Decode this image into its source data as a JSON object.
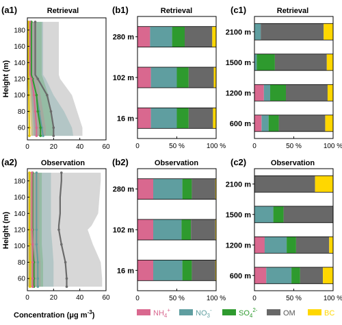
{
  "colors": {
    "NH4": "#d9688f",
    "NO3": "#5f9ea0",
    "SO4": "#2e9a2e",
    "OM": "#686868",
    "BC": "#ffd700"
  },
  "legend": {
    "items": [
      {
        "key": "NH4",
        "base": "NH",
        "sub": "4",
        "sup": "+"
      },
      {
        "key": "NO3",
        "base": "NO",
        "sub": "3",
        "sup": "-"
      },
      {
        "key": "SO4",
        "base": "SO",
        "sub": "4",
        "sup": "2-"
      },
      {
        "key": "OM",
        "label": "OM"
      },
      {
        "key": "BC",
        "label": "BC"
      }
    ]
  },
  "axes": {
    "ylabel": "Height (m)",
    "xlabel": "Concentration (μg m⁻³)",
    "xlabel_main": "Concentration (",
    "xlabel_unit": "μg m",
    "xlabel_exp": "-3",
    "xlabel_close": ")"
  },
  "chart_data": [
    {
      "panel": "(a1)",
      "title": "Retrieval",
      "type": "line",
      "xlim": [
        0,
        60
      ],
      "ylim": [
        45,
        195
      ],
      "xticks": [
        0,
        20,
        40,
        60
      ],
      "yticks": [
        60,
        80,
        100,
        120,
        140,
        160,
        180
      ],
      "series": [
        {
          "key": "OM",
          "height": [
            50,
            60,
            80,
            100,
            120,
            125,
            140,
            160,
            180,
            190
          ],
          "value": [
            20,
            20,
            18,
            15,
            8,
            6,
            6,
            6,
            6,
            6
          ],
          "lower": [
            5,
            5,
            4,
            3,
            2,
            2,
            2,
            2,
            2,
            2
          ],
          "upper": [
            42,
            42,
            38,
            34,
            25,
            24,
            24,
            24,
            24,
            24
          ]
        },
        {
          "key": "NO3",
          "height": [
            50,
            60,
            80,
            100,
            120,
            125,
            140,
            160,
            180,
            190
          ],
          "value": [
            12,
            11,
            9,
            7,
            4,
            3,
            3,
            3,
            3,
            3
          ],
          "lower": [
            3,
            3,
            2,
            2,
            1,
            1,
            1,
            1,
            1,
            1
          ],
          "upper": [
            35,
            34,
            28,
            20,
            14,
            12,
            12,
            12,
            12,
            12
          ]
        },
        {
          "key": "SO4",
          "height": [
            50,
            60,
            80,
            100,
            120,
            125,
            140,
            160,
            180,
            190
          ],
          "value": [
            10,
            10,
            8,
            7,
            4,
            3,
            3,
            3,
            3,
            3
          ],
          "lower": [
            3,
            3,
            3,
            2,
            1,
            1,
            1,
            1,
            1,
            1
          ],
          "upper": [
            20,
            20,
            18,
            16,
            12,
            11,
            11,
            11,
            11,
            11
          ]
        },
        {
          "key": "NH4",
          "height": [
            50,
            60,
            80,
            100,
            120,
            125,
            140,
            160,
            180,
            190
          ],
          "value": [
            7,
            7,
            6,
            5,
            3,
            2,
            2,
            2,
            2,
            2
          ],
          "lower": [
            2,
            2,
            2,
            1,
            1,
            1,
            1,
            1,
            1,
            1
          ],
          "upper": [
            14,
            14,
            12,
            10,
            8,
            7,
            7,
            7,
            7,
            7
          ]
        },
        {
          "key": "BC",
          "height": [
            50,
            60,
            80,
            100,
            120,
            125,
            140,
            160,
            180,
            190
          ],
          "value": [
            1.5,
            1.5,
            1.3,
            1.1,
            0.8,
            0.7,
            0.7,
            0.7,
            0.7,
            0.7
          ],
          "lower": [
            0.5,
            0.5,
            0.4,
            0.4,
            0.3,
            0.3,
            0.3,
            0.3,
            0.3,
            0.3
          ],
          "upper": [
            4,
            4,
            3.5,
            3,
            2.5,
            2.2,
            2.2,
            2.2,
            2.2,
            2.2
          ]
        }
      ]
    },
    {
      "panel": "(a2)",
      "title": "Observation",
      "type": "line",
      "xlim": [
        0,
        60
      ],
      "ylim": [
        45,
        195
      ],
      "xticks": [
        0,
        20,
        40,
        60
      ],
      "yticks": [
        60,
        80,
        100,
        120,
        140,
        160,
        180
      ],
      "series": [
        {
          "key": "OM",
          "height": [
            50,
            60,
            80,
            102,
            120,
            125,
            140,
            160,
            180,
            190
          ],
          "value": [
            30,
            30,
            29,
            26,
            24,
            24,
            25,
            25,
            26,
            26
          ],
          "lower": [
            0,
            0,
            0,
            0,
            0,
            0,
            0,
            0,
            0,
            0
          ],
          "upper": [
            57,
            57,
            56,
            50,
            46,
            49,
            54,
            55,
            56,
            56
          ]
        },
        {
          "key": "NO3",
          "height": [
            50,
            60,
            80,
            102,
            120,
            125,
            140,
            160,
            180,
            190
          ],
          "value": [
            8,
            8,
            8,
            7,
            7,
            7,
            7,
            7,
            7,
            7
          ],
          "lower": [
            1,
            1,
            1,
            1,
            1,
            1,
            1,
            1,
            1,
            1
          ],
          "upper": [
            20,
            20,
            20,
            19,
            18,
            18,
            18,
            18,
            18,
            18
          ]
        },
        {
          "key": "SO4",
          "height": [
            50,
            60,
            80,
            102,
            120,
            125,
            140,
            160,
            180,
            190
          ],
          "value": [
            5,
            5,
            5,
            4,
            4,
            4,
            4,
            4,
            4,
            4
          ],
          "lower": [
            1,
            1,
            1,
            1,
            1,
            1,
            1,
            1,
            1,
            1
          ],
          "upper": [
            12,
            12,
            12,
            11,
            11,
            11,
            11,
            11,
            11,
            11
          ]
        },
        {
          "key": "NH4",
          "height": [
            50,
            60,
            80,
            102,
            120,
            125,
            140,
            160,
            180,
            190
          ],
          "value": [
            4,
            4,
            4,
            4,
            3.5,
            3.5,
            3.5,
            3.5,
            3.5,
            3.5
          ],
          "lower": [
            1,
            1,
            1,
            1,
            1,
            1,
            1,
            1,
            1,
            1
          ],
          "upper": [
            10,
            10,
            10,
            9,
            9,
            9,
            9,
            9,
            9,
            9
          ]
        },
        {
          "key": "BC",
          "height": [
            50,
            60,
            80,
            102,
            120,
            125,
            140,
            160,
            180,
            190
          ],
          "value": [
            2,
            2,
            2,
            1.8,
            1.6,
            1.6,
            1.6,
            1.6,
            1.6,
            1.6
          ],
          "lower": [
            0.5,
            0.5,
            0.5,
            0.5,
            0.5,
            0.5,
            0.5,
            0.5,
            0.5,
            0.5
          ],
          "upper": [
            5,
            5,
            5,
            4.5,
            4,
            4,
            4,
            4,
            4,
            4
          ]
        }
      ]
    },
    {
      "panel": "(b1)",
      "title": "Retrieval",
      "type": "bar",
      "orientation": "horizontal-stacked",
      "xlim": [
        0,
        100
      ],
      "xticks": [
        "0",
        "50 %",
        "100 %"
      ],
      "categories": [
        "280 m",
        "102 m",
        "16 m"
      ],
      "segments": {
        "NH4": [
          16,
          17,
          17
        ],
        "NO3": [
          28,
          33,
          33
        ],
        "SO4": [
          16,
          15,
          15
        ],
        "OM": [
          35,
          32,
          31
        ],
        "BC": [
          5,
          3,
          4
        ]
      }
    },
    {
      "panel": "(b2)",
      "title": "Observation",
      "type": "bar",
      "orientation": "horizontal-stacked",
      "xlim": [
        0,
        100
      ],
      "xticks": [
        "0",
        "50 %",
        "100 %"
      ],
      "categories": [
        "280 m",
        "102 m",
        "16 m"
      ],
      "segments": {
        "NH4": [
          20,
          20,
          20
        ],
        "NO3": [
          37,
          36,
          37
        ],
        "SO4": [
          12,
          12,
          12
        ],
        "OM": [
          30,
          31,
          30
        ],
        "BC": [
          1,
          1,
          1
        ]
      }
    },
    {
      "panel": "(c1)",
      "title": "Retrieval",
      "type": "bar",
      "orientation": "horizontal-stacked",
      "xlim": [
        0,
        100
      ],
      "xticks": [
        "0",
        "50 %",
        "100 %"
      ],
      "categories": [
        "2100 m",
        "1500 m",
        "1200 m",
        "600 m"
      ],
      "segments": {
        "NH4": [
          0,
          0,
          12,
          9
        ],
        "NO3": [
          8,
          3,
          8,
          9
        ],
        "SO4": [
          0,
          23,
          20,
          13
        ],
        "OM": [
          80,
          66,
          53,
          59
        ],
        "BC": [
          12,
          8,
          7,
          10
        ]
      }
    },
    {
      "panel": "(c2)",
      "title": "Observation",
      "type": "bar",
      "orientation": "horizontal-stacked",
      "xlim": [
        0,
        100
      ],
      "xticks": [
        "0",
        "50 %",
        "100 %"
      ],
      "categories": [
        "2100 m",
        "1500 m",
        "1200 m",
        "600 m"
      ],
      "segments": {
        "NH4": [
          0,
          0,
          13,
          15
        ],
        "NO3": [
          0,
          24,
          28,
          32
        ],
        "SO4": [
          0,
          13,
          12,
          11
        ],
        "OM": [
          77,
          63,
          42,
          29
        ],
        "BC": [
          23,
          0,
          5,
          13
        ]
      }
    }
  ]
}
